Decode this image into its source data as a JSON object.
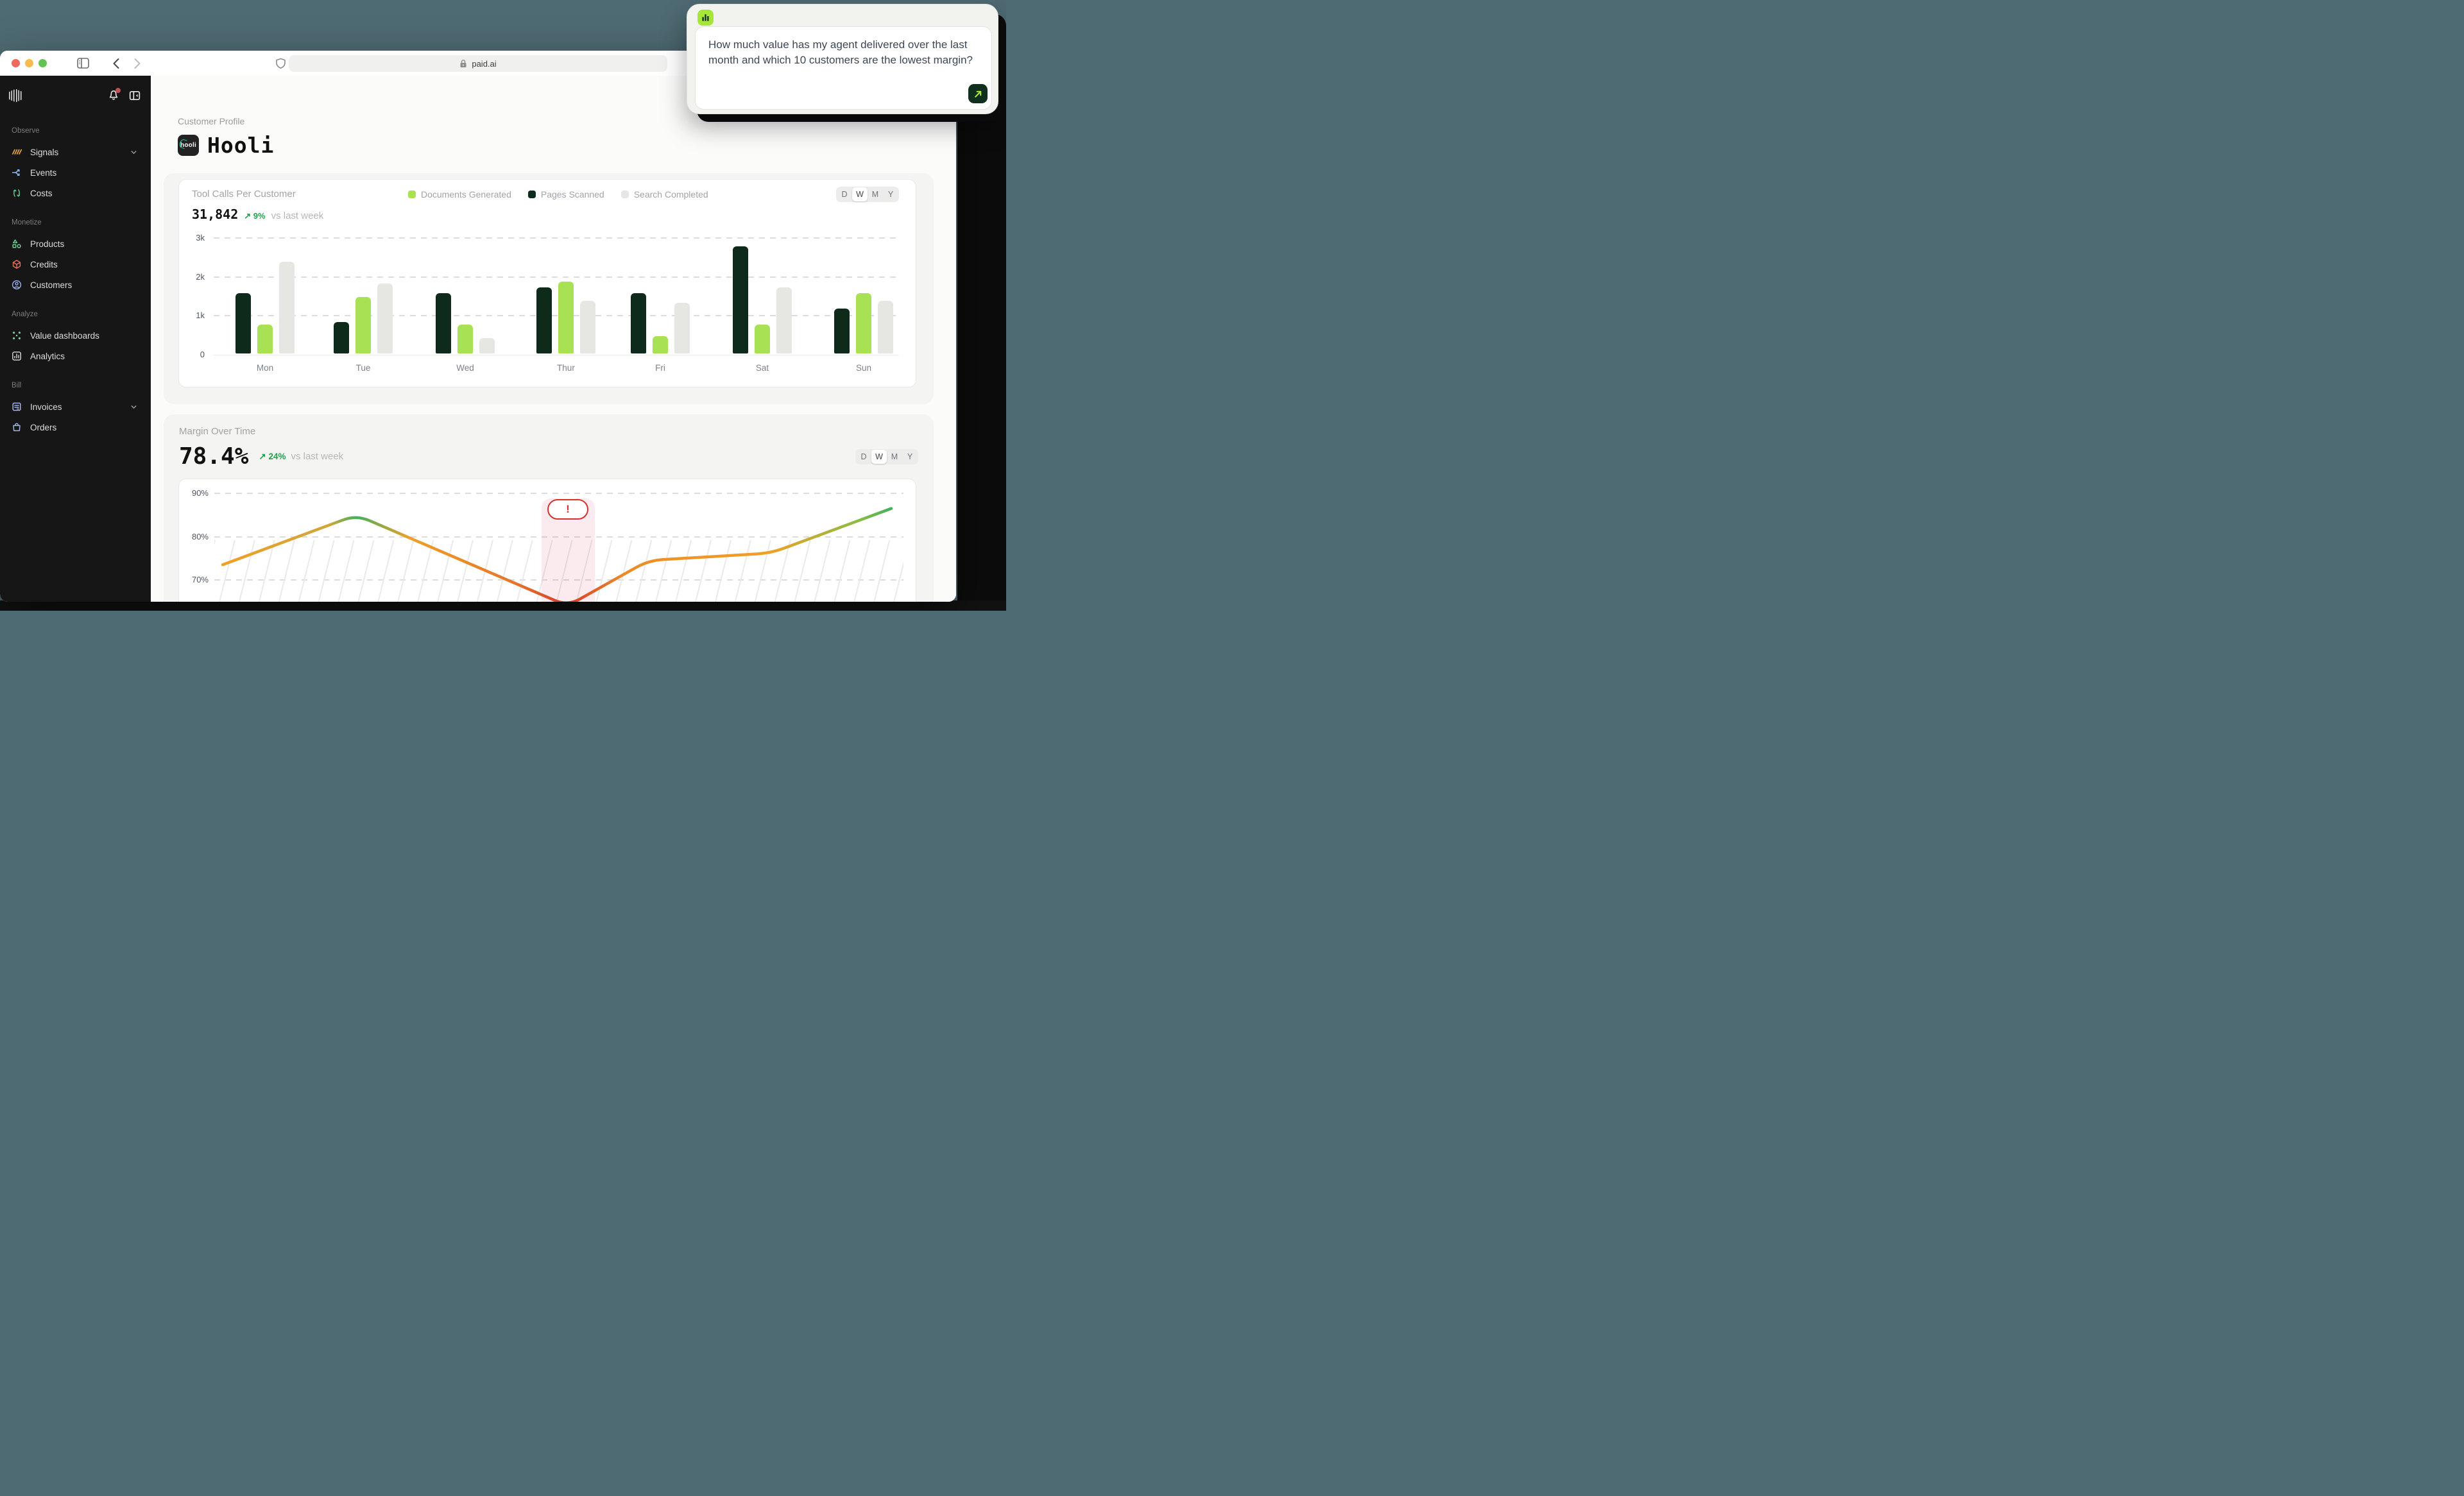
{
  "browser": {
    "url": "paid.ai"
  },
  "sidebar": {
    "sections": [
      {
        "label": "Observe",
        "items": [
          {
            "label": "Signals",
            "icon": "signals-icon",
            "chevron": true
          },
          {
            "label": "Events",
            "icon": "events-icon"
          },
          {
            "label": "Costs",
            "icon": "costs-icon"
          }
        ]
      },
      {
        "label": "Monetize",
        "items": [
          {
            "label": "Products",
            "icon": "products-icon"
          },
          {
            "label": "Credits",
            "icon": "credits-icon"
          },
          {
            "label": "Customers",
            "icon": "customers-icon"
          }
        ]
      },
      {
        "label": "Analyze",
        "items": [
          {
            "label": "Value dashboards",
            "icon": "value-dashboards-icon"
          },
          {
            "label": "Analytics",
            "icon": "analytics-icon"
          }
        ]
      },
      {
        "label": "Bill",
        "items": [
          {
            "label": "Invoices",
            "icon": "invoices-icon",
            "chevron": true
          },
          {
            "label": "Orders",
            "icon": "orders-icon"
          }
        ]
      }
    ]
  },
  "page": {
    "eyebrow": "Customer Profile",
    "customer": "Hooli",
    "logo_text": "hooli"
  },
  "range_toggle": {
    "options": [
      "D",
      "W",
      "M",
      "Y"
    ],
    "selected": "W"
  },
  "tool_calls_card": {
    "title": "Tool Calls Per Customer",
    "value": "31,842",
    "delta": "9%",
    "delta_direction": "up",
    "comparison": "vs last week",
    "legend": [
      {
        "label": "Documents Generated",
        "color": "#a8e153"
      },
      {
        "label": "Pages Scanned",
        "color": "#0d2a1b"
      },
      {
        "label": "Search Completed",
        "color": "#e6e6e3"
      }
    ]
  },
  "margin_card": {
    "title": "Margin Over Time",
    "value": "78.4%",
    "delta": "24%",
    "delta_direction": "up",
    "comparison": "vs last week",
    "alert_label": "!"
  },
  "chat": {
    "icon": "bar-chart-icon",
    "question": "How much value has my agent delivered over the last month and which 10 customers are the lowest margin?",
    "submit_icon": "arrow-up-right-icon",
    "accent_color": "#a6e636",
    "button_color": "#10301d"
  },
  "chart_data": [
    {
      "type": "bar",
      "title": "Tool Calls Per Customer",
      "categories": [
        "Mon",
        "Tue",
        "Wed",
        "Thur",
        "Fri",
        "Sat",
        "Sun"
      ],
      "series": [
        {
          "name": "Pages Scanned",
          "color": "#0d2a1b",
          "values": [
            1550,
            800,
            1550,
            1700,
            1550,
            2750,
            1150
          ]
        },
        {
          "name": "Documents Generated",
          "color": "#a8e153",
          "values": [
            750,
            1450,
            750,
            1850,
            450,
            750,
            1550
          ]
        },
        {
          "name": "Search Completed",
          "color": "#e6e6e3",
          "values": [
            2350,
            1800,
            400,
            1350,
            1300,
            1700,
            1350
          ]
        }
      ],
      "ylim": [
        0,
        3000
      ],
      "ytick_labels": [
        "3k",
        "2k",
        "1k",
        "0"
      ],
      "grid": "dashed-horizontal",
      "legend_position": "top"
    },
    {
      "type": "line",
      "title": "Margin Over Time",
      "unit": "%",
      "ytick_labels": [
        "90%",
        "80%",
        "70%"
      ],
      "ytick_values": [
        90,
        80,
        70
      ],
      "visible_range_cut_bottom": true,
      "points": [
        {
          "x": 0.0,
          "y": 73.5
        },
        {
          "x": 0.2,
          "y": 85.0
        },
        {
          "x": 0.516,
          "y": 64.0
        },
        {
          "x": 0.637,
          "y": 74.5
        },
        {
          "x": 0.82,
          "y": 76.2
        },
        {
          "x": 1.0,
          "y": 86.5
        }
      ],
      "gradient_by_value": {
        "high": "#44b05e",
        "mid": "#f0a028",
        "low": "#d93a2b"
      },
      "alert": {
        "x": 0.517,
        "label": "!",
        "band": [
          0.477,
          0.557
        ]
      },
      "hatch_below": 80,
      "grid": "dashed-horizontal"
    }
  ]
}
